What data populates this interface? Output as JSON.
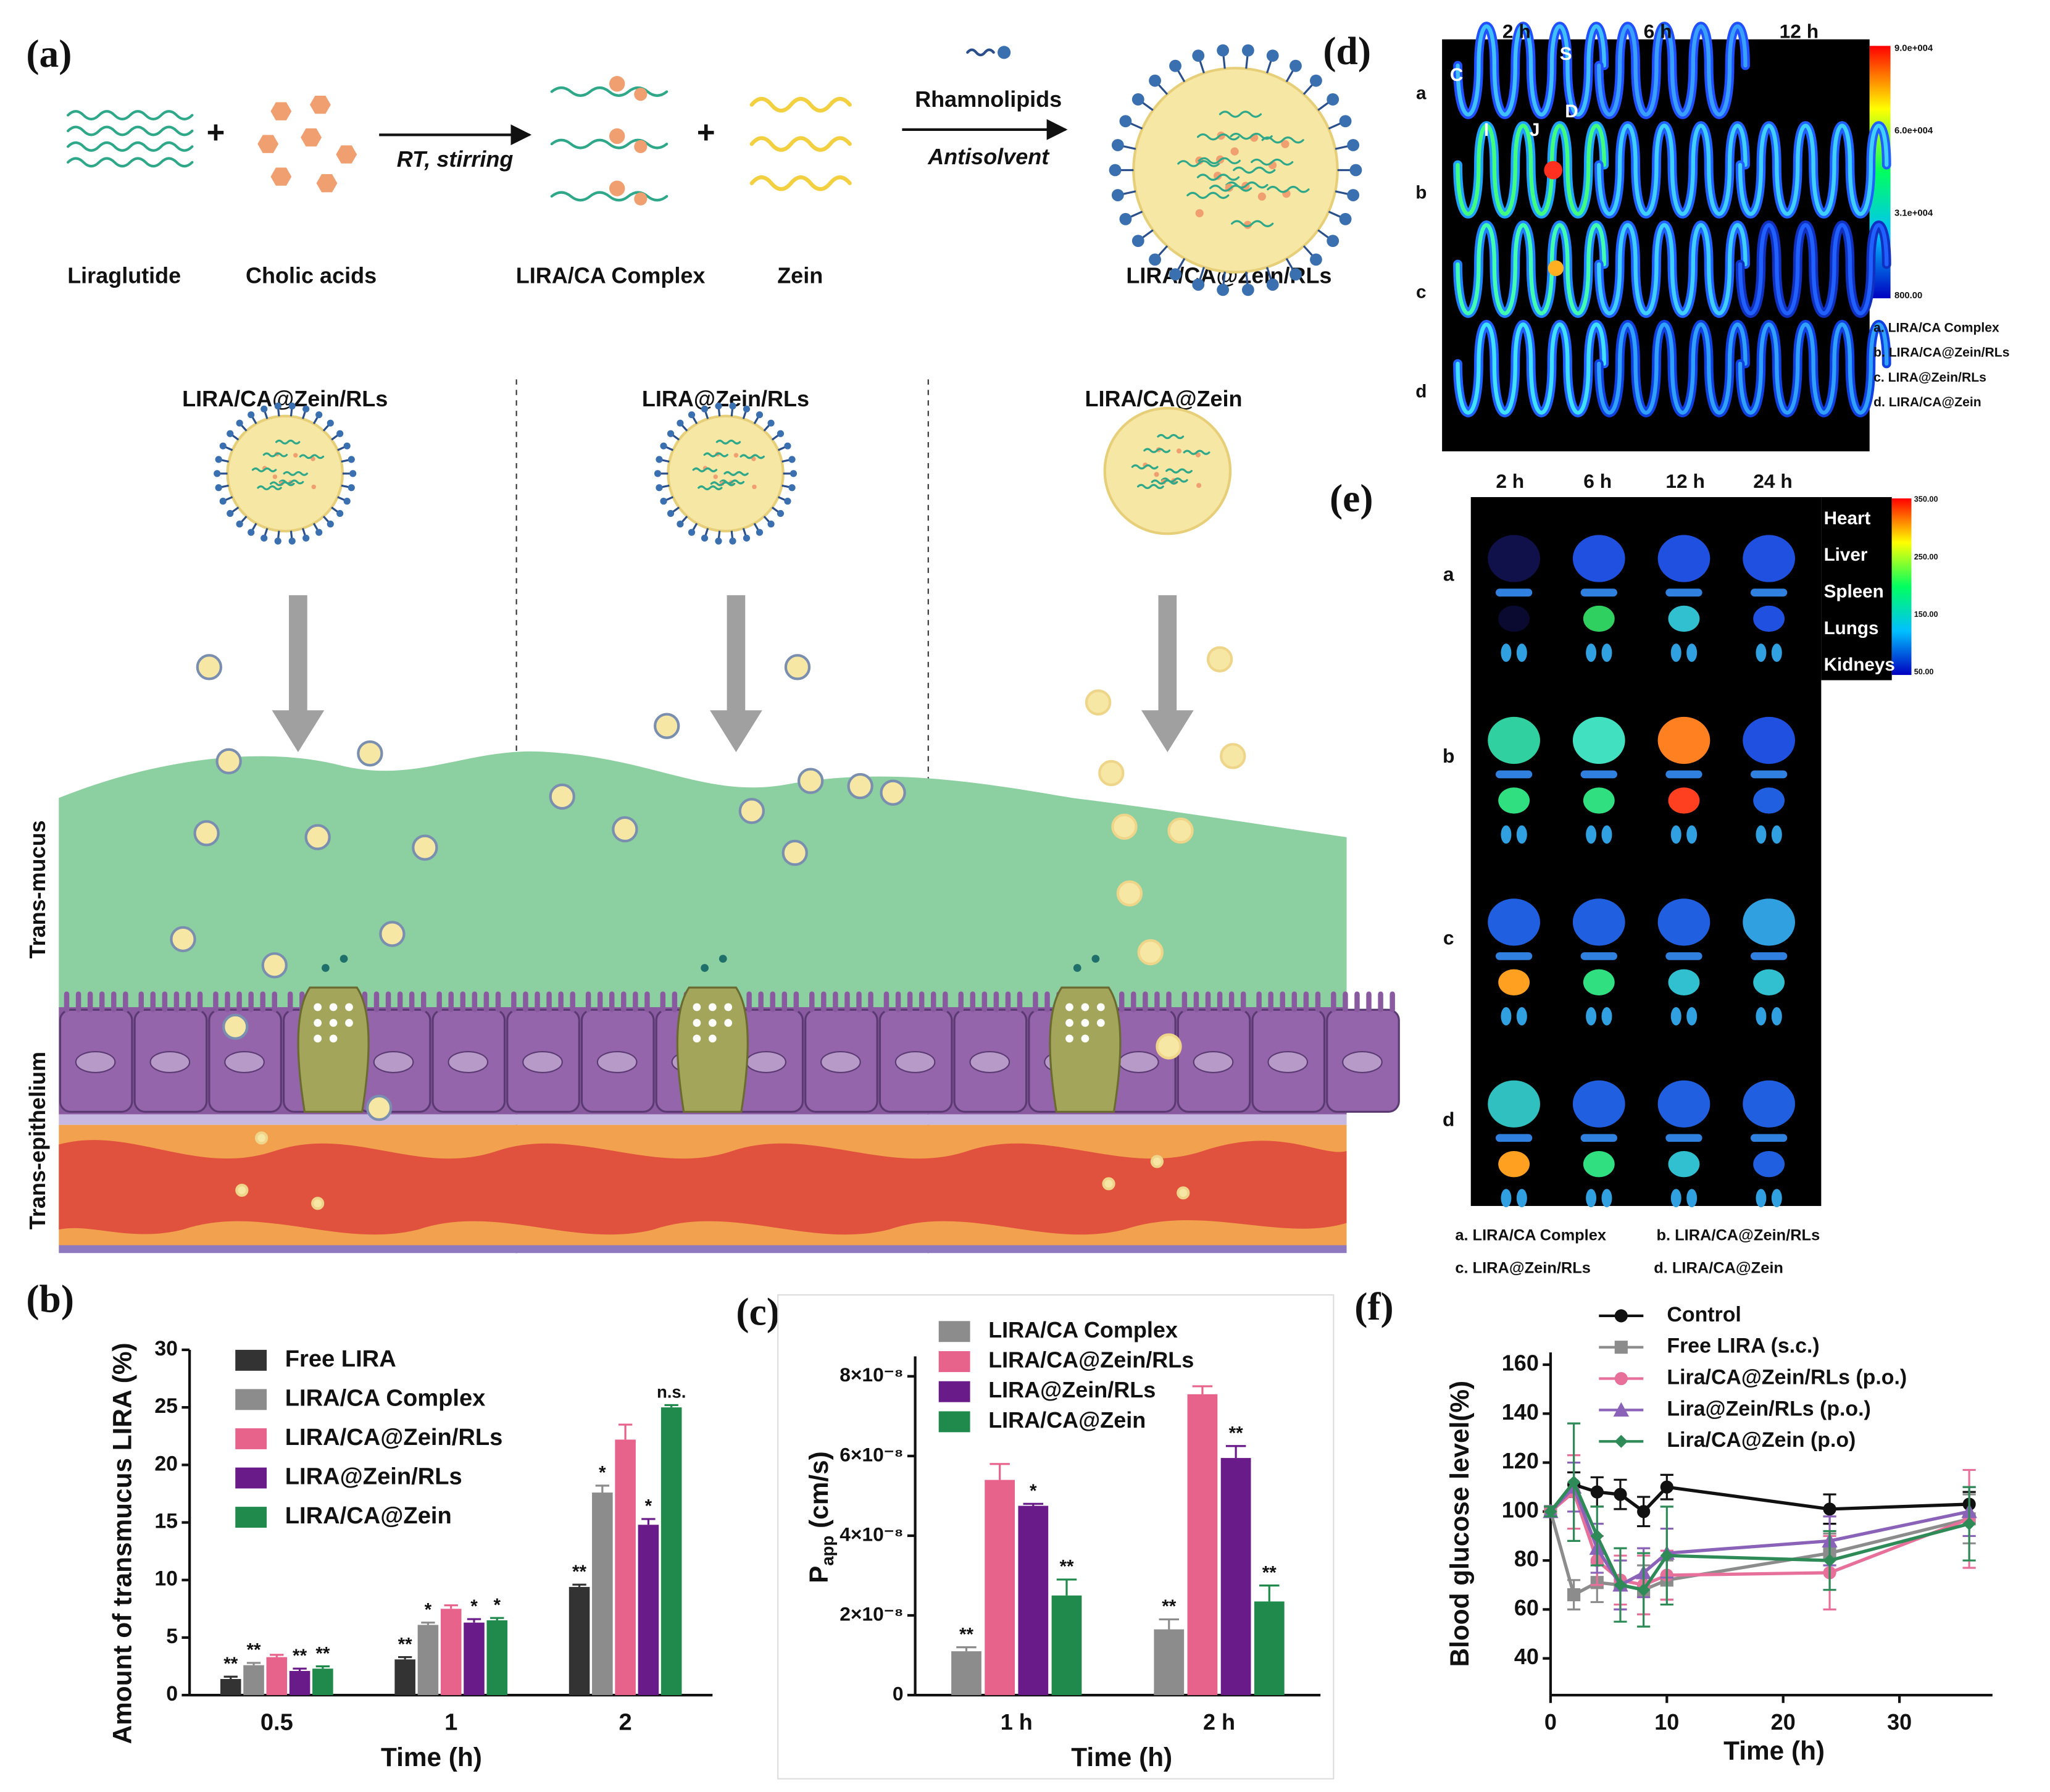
{
  "panel_labels": [
    "(a)",
    "(b)",
    "(c)",
    "(d)",
    "(e)",
    "(f)"
  ],
  "scheme": {
    "items": [
      "Liraglutide",
      "Cholic acids",
      "LIRA/CA Complex",
      "Zein",
      "LIRA/CA@Zein/RLs"
    ],
    "step1": "RT, stirring",
    "step2_top": "Rhamnolipids",
    "step2_bottom": "Antisolvent",
    "columns": [
      "LIRA/CA@Zein/RLs",
      "LIRA@Zein/RLs",
      "LIRA/CA@Zein"
    ],
    "layers": [
      "Trans-mucus",
      "Trans-epithelium"
    ]
  },
  "imaging_d": {
    "times": [
      "2 h",
      "6 h",
      "12 h"
    ],
    "rows": [
      "a",
      "b",
      "c",
      "d"
    ],
    "organ_labels": [
      "C",
      "S",
      "D",
      "I",
      "J"
    ],
    "colorbar": [
      "9.0e+004",
      "6.0e+004",
      "3.1e+004",
      "800.00"
    ],
    "legend": [
      "a. LIRA/CA Complex",
      "b. LIRA/CA@Zein/RLs",
      "c. LIRA@Zein/RLs",
      "d. LIRA/CA@Zein"
    ]
  },
  "imaging_e": {
    "times": [
      "2 h",
      "6 h",
      "12 h",
      "24 h"
    ],
    "rows": [
      "a",
      "b",
      "c",
      "d"
    ],
    "organs": [
      "Heart",
      "Liver",
      "Spleen",
      "Lungs",
      "Kidneys"
    ],
    "colorbar": [
      "350.00",
      "250.00",
      "150.00",
      "50.00"
    ],
    "legend": [
      "a. LIRA/CA Complex",
      "b. LIRA/CA@Zein/RLs",
      "c. LIRA@Zein/RLs",
      "d. LIRA/CA@Zein"
    ]
  },
  "chart_data": [
    {
      "type": "bar",
      "categories": [
        "0.5",
        "1",
        "2"
      ],
      "xlabel": "Time (h)",
      "ylabel": "Amount of transmucus LIRA (%)",
      "ylim": [
        0,
        30
      ],
      "yticks": [
        0,
        5,
        10,
        15,
        20,
        25,
        30
      ],
      "series": [
        {
          "name": "Free LIRA",
          "color": "#333333",
          "values": [
            1.4,
            3.1,
            9.4
          ],
          "errors": [
            0.2,
            0.2,
            0.2
          ],
          "significance": [
            "**",
            "**",
            "**"
          ]
        },
        {
          "name": "LIRA/CA Complex",
          "color": "#8c8c8c",
          "values": [
            2.6,
            6.1,
            17.6
          ],
          "errors": [
            0.2,
            0.2,
            0.6
          ],
          "significance": [
            "**",
            "*",
            "*"
          ]
        },
        {
          "name": "LIRA/CA@Zein/RLs",
          "color": "#e8638c",
          "values": [
            3.3,
            7.5,
            22.2
          ],
          "errors": [
            0.2,
            0.3,
            1.3
          ],
          "significance": [
            null,
            null,
            null
          ]
        },
        {
          "name": "LIRA@Zein/RLs",
          "color": "#6a1b8a",
          "values": [
            2.1,
            6.3,
            14.8
          ],
          "errors": [
            0.2,
            0.3,
            0.5
          ],
          "significance": [
            "**",
            "*",
            "*"
          ]
        },
        {
          "name": "LIRA/CA@Zein",
          "color": "#1f8a4c",
          "values": [
            2.3,
            6.5,
            25.0
          ],
          "errors": [
            0.2,
            0.2,
            0.2
          ],
          "significance": [
            "**",
            "*",
            "n.s."
          ]
        }
      ]
    },
    {
      "type": "bar",
      "categories": [
        "1 h",
        "2 h"
      ],
      "xlabel": "Time (h)",
      "ylabel": [
        "P",
        "app",
        " (cm/s)"
      ],
      "ylim": [
        0,
        8.5e-08
      ],
      "yticks": [
        0,
        {
          "value": 2e-08,
          "label": "2×10⁻⁸"
        },
        {
          "value": 4e-08,
          "label": "4×10⁻⁸"
        },
        {
          "value": 6e-08,
          "label": "6×10⁻⁸"
        },
        {
          "value": 8e-08,
          "label": "8×10⁻⁸"
        }
      ],
      "series": [
        {
          "name": "LIRA/CA Complex",
          "color": "#8c8c8c",
          "values": [
            1.1e-08,
            1.65e-08
          ],
          "errors": [
            1e-09,
            2.5e-09
          ],
          "significance": [
            "**",
            "**"
          ]
        },
        {
          "name": "LIRA/CA@Zein/RLs",
          "color": "#e8638c",
          "values": [
            5.4e-08,
            7.55e-08
          ],
          "errors": [
            4e-09,
            2e-09
          ],
          "significance": [
            null,
            null
          ]
        },
        {
          "name": "LIRA@Zein/RLs",
          "color": "#6a1b8a",
          "values": [
            4.75e-08,
            5.95e-08
          ],
          "errors": [
            5e-10,
            3e-09
          ],
          "significance": [
            "*",
            "**"
          ]
        },
        {
          "name": "LIRA/CA@Zein",
          "color": "#1f8a4c",
          "values": [
            2.5e-08,
            2.35e-08
          ],
          "errors": [
            4e-09,
            4e-09
          ],
          "significance": [
            "**",
            "**"
          ]
        }
      ]
    },
    {
      "type": "line",
      "x": [
        0,
        2,
        4,
        6,
        8,
        10,
        24,
        36
      ],
      "xlabel": "Time (h)",
      "ylabel": "Blood glucose level(%)",
      "xlim": [
        0,
        38
      ],
      "xticks": [
        0,
        10,
        20,
        30
      ],
      "ylim": [
        25,
        165
      ],
      "yticks": [
        40,
        60,
        80,
        100,
        120,
        140,
        160
      ],
      "series": [
        {
          "name": "Control",
          "color": "#111111",
          "marker": "circle",
          "values": [
            100,
            111,
            108,
            107,
            100,
            110,
            101,
            103
          ],
          "errors": [
            2,
            5,
            6,
            6,
            6,
            5,
            6,
            5
          ]
        },
        {
          "name": "Free LIRA (s.c.)",
          "color": "#8c8c8c",
          "marker": "square",
          "values": [
            100,
            66,
            71,
            70,
            68,
            72,
            83,
            97
          ],
          "errors": [
            2,
            6,
            8,
            10,
            10,
            8,
            8,
            10
          ]
        },
        {
          "name": "Lira/CA@Zein/RLs (p.o.)",
          "color": "#e6709a",
          "marker": "circle",
          "values": [
            100,
            108,
            80,
            72,
            70,
            74,
            75,
            97
          ],
          "errors": [
            2,
            15,
            10,
            10,
            12,
            10,
            15,
            20
          ]
        },
        {
          "name": "Lira@Zein/RLs (p.o.)",
          "color": "#8a63b8",
          "marker": "triangle",
          "values": [
            100,
            110,
            85,
            70,
            75,
            83,
            88,
            100
          ],
          "errors": [
            2,
            10,
            10,
            10,
            10,
            10,
            10,
            10
          ]
        },
        {
          "name": "Lira/CA@Zein (p.o)",
          "color": "#2e8b57",
          "marker": "diamond",
          "values": [
            100,
            112,
            90,
            70,
            68,
            82,
            80,
            95
          ],
          "errors": [
            2,
            24,
            12,
            15,
            15,
            20,
            12,
            15
          ]
        }
      ]
    }
  ]
}
